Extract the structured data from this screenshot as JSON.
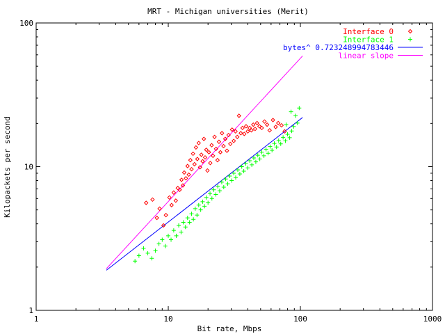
{
  "chart_data": {
    "type": "scatter",
    "title": "MRT - Michigan universities (Merit)",
    "xlabel": "Bit rate, Mbps",
    "ylabel": "Kilopackets per second",
    "xscale": "log",
    "yscale": "log",
    "xlim": [
      1,
      1000
    ],
    "ylim": [
      1,
      100
    ],
    "x_ticks": [
      "1",
      "10",
      "100",
      "1000"
    ],
    "y_ticks": [
      "1",
      "10",
      "100"
    ],
    "legend_position": "top-right",
    "grid": false,
    "series": [
      {
        "name": "Interface 0",
        "marker": "diamond",
        "color": "#ff0000",
        "points": [
          [
            6.8,
            5.6
          ],
          [
            7.6,
            5.9
          ],
          [
            8.2,
            4.4
          ],
          [
            8.6,
            5.1
          ],
          [
            9.2,
            3.9
          ],
          [
            9.6,
            4.6
          ],
          [
            10.2,
            6.1
          ],
          [
            10.6,
            5.4
          ],
          [
            11.0,
            6.6
          ],
          [
            11.4,
            5.8
          ],
          [
            11.8,
            7.1
          ],
          [
            12.2,
            6.9
          ],
          [
            12.6,
            8.1
          ],
          [
            12.9,
            7.4
          ],
          [
            13.2,
            9.1
          ],
          [
            13.6,
            8.3
          ],
          [
            14.0,
            10.1
          ],
          [
            14.3,
            8.8
          ],
          [
            14.7,
            11.1
          ],
          [
            15.0,
            9.6
          ],
          [
            15.4,
            12.3
          ],
          [
            15.8,
            10.4
          ],
          [
            16.2,
            13.6
          ],
          [
            16.6,
            11.3
          ],
          [
            17.0,
            14.6
          ],
          [
            17.4,
            9.9
          ],
          [
            17.8,
            12.1
          ],
          [
            18.2,
            10.9
          ],
          [
            18.6,
            15.6
          ],
          [
            19.0,
            11.6
          ],
          [
            19.4,
            13.1
          ],
          [
            19.8,
            9.4
          ],
          [
            20.3,
            12.6
          ],
          [
            20.8,
            10.6
          ],
          [
            21.3,
            14.1
          ],
          [
            21.8,
            11.9
          ],
          [
            22.4,
            16.1
          ],
          [
            23.0,
            13.3
          ],
          [
            23.6,
            11.1
          ],
          [
            24.2,
            14.9
          ],
          [
            24.8,
            12.6
          ],
          [
            25.5,
            17.1
          ],
          [
            26.2,
            13.9
          ],
          [
            27.0,
            15.6
          ],
          [
            27.8,
            12.9
          ],
          [
            28.6,
            16.6
          ],
          [
            29.5,
            14.4
          ],
          [
            30.4,
            18.1
          ],
          [
            31.3,
            15.1
          ],
          [
            32.3,
            17.6
          ],
          [
            33.3,
            16.1
          ],
          [
            34.3,
            22.6
          ],
          [
            35.4,
            17.1
          ],
          [
            36.5,
            18.6
          ],
          [
            37.6,
            16.9
          ],
          [
            38.8,
            19.1
          ],
          [
            40.0,
            17.6
          ],
          [
            41.3,
            18.6
          ],
          [
            42.6,
            17.9
          ],
          [
            44.0,
            19.6
          ],
          [
            45.4,
            18.3
          ],
          [
            47.0,
            20.1
          ],
          [
            49.0,
            19.1
          ],
          [
            51.0,
            18.6
          ],
          [
            53.5,
            20.6
          ],
          [
            56.0,
            19.6
          ],
          [
            58.5,
            17.9
          ],
          [
            62.0,
            21.1
          ],
          [
            65.0,
            18.9
          ],
          [
            68.0,
            20.1
          ],
          [
            72.0,
            19.4
          ],
          [
            76.0,
            17.6
          ]
        ]
      },
      {
        "name": "Interface 1",
        "marker": "plus",
        "color": "#00ff00",
        "points": [
          [
            5.6,
            2.2
          ],
          [
            6.0,
            2.4
          ],
          [
            6.5,
            2.7
          ],
          [
            7.0,
            2.5
          ],
          [
            7.5,
            2.3
          ],
          [
            8.0,
            2.6
          ],
          [
            8.5,
            2.9
          ],
          [
            9.0,
            3.1
          ],
          [
            9.5,
            2.8
          ],
          [
            10.0,
            3.3
          ],
          [
            10.5,
            3.1
          ],
          [
            11.0,
            3.6
          ],
          [
            11.5,
            3.3
          ],
          [
            12.0,
            3.9
          ],
          [
            12.5,
            3.5
          ],
          [
            13.0,
            4.1
          ],
          [
            13.5,
            3.8
          ],
          [
            14.0,
            4.4
          ],
          [
            14.5,
            4.1
          ],
          [
            15.0,
            4.7
          ],
          [
            15.5,
            4.3
          ],
          [
            16.0,
            5.1
          ],
          [
            16.5,
            4.6
          ],
          [
            17.0,
            5.4
          ],
          [
            17.6,
            5.0
          ],
          [
            18.2,
            5.7
          ],
          [
            18.8,
            5.3
          ],
          [
            19.4,
            6.1
          ],
          [
            20.0,
            5.6
          ],
          [
            20.7,
            6.5
          ],
          [
            21.4,
            6.0
          ],
          [
            22.1,
            6.9
          ],
          [
            22.9,
            6.4
          ],
          [
            23.7,
            7.3
          ],
          [
            24.5,
            6.8
          ],
          [
            25.4,
            7.8
          ],
          [
            26.3,
            7.2
          ],
          [
            27.2,
            8.2
          ],
          [
            28.2,
            7.6
          ],
          [
            29.2,
            8.6
          ],
          [
            30.2,
            8.0
          ],
          [
            31.3,
            9.0
          ],
          [
            32.4,
            8.4
          ],
          [
            33.6,
            9.5
          ],
          [
            34.8,
            8.9
          ],
          [
            36.0,
            10.0
          ],
          [
            37.3,
            9.3
          ],
          [
            38.6,
            10.5
          ],
          [
            40.0,
            9.8
          ],
          [
            41.4,
            11.0
          ],
          [
            42.9,
            10.3
          ],
          [
            44.4,
            11.5
          ],
          [
            46.0,
            10.8
          ],
          [
            47.6,
            12.0
          ],
          [
            49.3,
            11.3
          ],
          [
            51.0,
            12.6
          ],
          [
            53.0,
            11.9
          ],
          [
            55.0,
            13.2
          ],
          [
            57.0,
            12.4
          ],
          [
            59.0,
            13.8
          ],
          [
            61.0,
            13.0
          ],
          [
            63.5,
            14.5
          ],
          [
            66.0,
            13.7
          ],
          [
            68.5,
            15.2
          ],
          [
            71.0,
            14.4
          ],
          [
            74.0,
            16.0
          ],
          [
            77.0,
            15.1
          ],
          [
            80.0,
            16.8
          ],
          [
            83.0,
            15.9
          ],
          [
            86.0,
            17.7
          ],
          [
            89.0,
            19.0
          ],
          [
            92.0,
            22.6
          ],
          [
            95.0,
            20.1
          ],
          [
            98.0,
            25.6
          ],
          [
            85.0,
            24.1
          ],
          [
            78.0,
            19.6
          ]
        ]
      },
      {
        "name": "bytes^ 0.723248994783446",
        "marker": "line",
        "color": "#0000ff",
        "points": [
          [
            3.4,
            1.9
          ],
          [
            104,
            22.0
          ]
        ]
      },
      {
        "name": "linear slope",
        "marker": "line",
        "color": "#ff00ff",
        "points": [
          [
            3.4,
            1.95
          ],
          [
            104,
            59.0
          ]
        ]
      }
    ]
  }
}
